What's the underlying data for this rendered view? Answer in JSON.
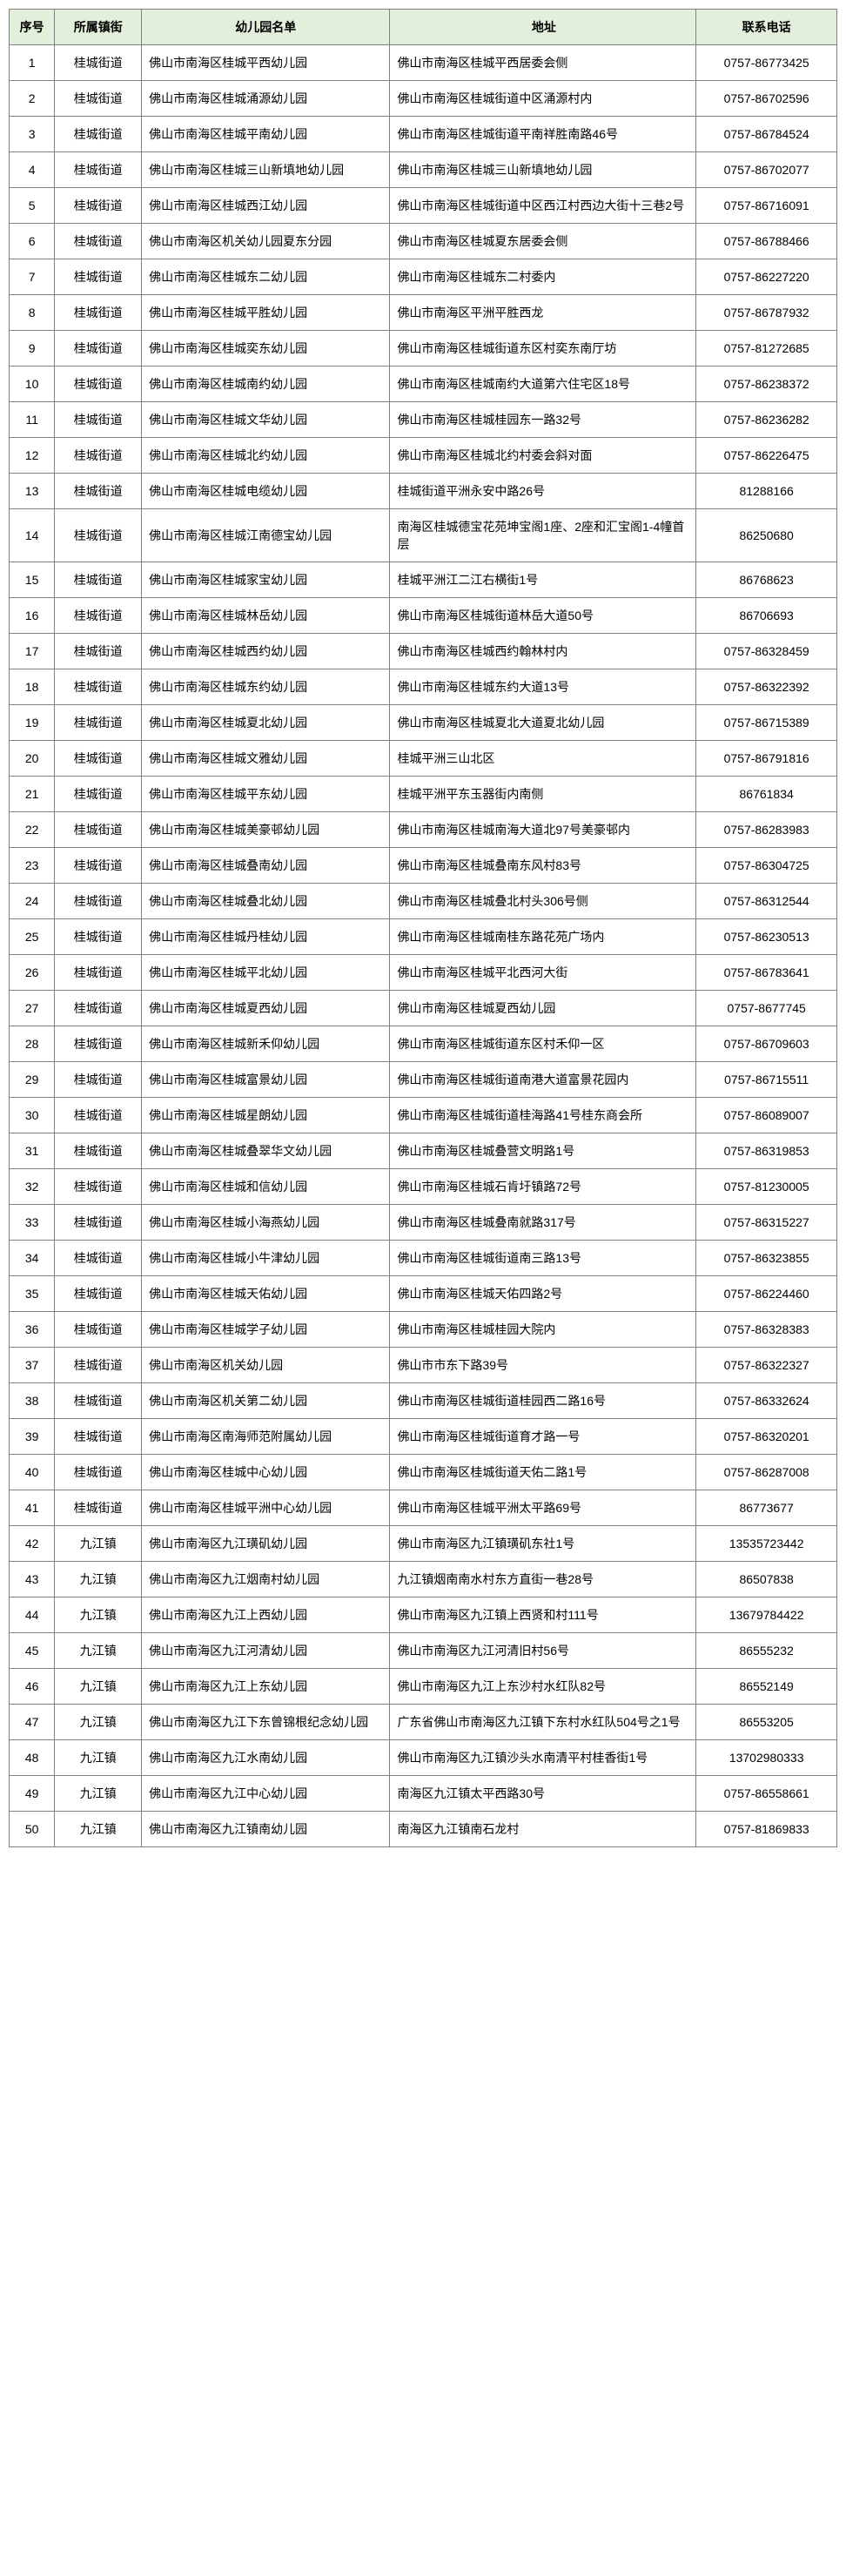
{
  "headers": {
    "seq": "序号",
    "township": "所属镇街",
    "name": "幼儿园名单",
    "address": "地址",
    "phone": "联系电话"
  },
  "rows": [
    {
      "seq": "1",
      "township": "桂城街道",
      "name": "佛山市南海区桂城平西幼儿园",
      "address": "佛山市南海区桂城平西居委会侧",
      "phone": "0757-86773425"
    },
    {
      "seq": "2",
      "township": "桂城街道",
      "name": "佛山市南海区桂城涌源幼儿园",
      "address": "佛山市南海区桂城街道中区涌源村内",
      "phone": "0757-86702596"
    },
    {
      "seq": "3",
      "township": "桂城街道",
      "name": "佛山市南海区桂城平南幼儿园",
      "address": "佛山市南海区桂城街道平南祥胜南路46号",
      "phone": "0757-86784524"
    },
    {
      "seq": "4",
      "township": "桂城街道",
      "name": "佛山市南海区桂城三山新填地幼儿园",
      "address": "佛山市南海区桂城三山新填地幼儿园",
      "phone": "0757-86702077"
    },
    {
      "seq": "5",
      "township": "桂城街道",
      "name": "佛山市南海区桂城西江幼儿园",
      "address": "佛山市南海区桂城街道中区西江村西边大街十三巷2号",
      "phone": "0757-86716091"
    },
    {
      "seq": "6",
      "township": "桂城街道",
      "name": "佛山市南海区机关幼儿园夏东分园",
      "address": "佛山市南海区桂城夏东居委会侧",
      "phone": "0757-86788466"
    },
    {
      "seq": "7",
      "township": "桂城街道",
      "name": "佛山市南海区桂城东二幼儿园",
      "address": "佛山市南海区桂城东二村委内",
      "phone": "0757-86227220"
    },
    {
      "seq": "8",
      "township": "桂城街道",
      "name": "佛山市南海区桂城平胜幼儿园",
      "address": "佛山市南海区平洲平胜西龙",
      "phone": "0757-86787932"
    },
    {
      "seq": "9",
      "township": "桂城街道",
      "name": "佛山市南海区桂城奕东幼儿园",
      "address": "佛山市南海区桂城街道东区村奕东南厅坊",
      "phone": "0757-81272685"
    },
    {
      "seq": "10",
      "township": "桂城街道",
      "name": "佛山市南海区桂城南约幼儿园",
      "address": "佛山市南海区桂城南约大道第六住宅区18号",
      "phone": "0757-86238372"
    },
    {
      "seq": "11",
      "township": "桂城街道",
      "name": "佛山市南海区桂城文华幼儿园",
      "address": "佛山市南海区桂城桂园东一路32号",
      "phone": "0757-86236282"
    },
    {
      "seq": "12",
      "township": "桂城街道",
      "name": "佛山市南海区桂城北约幼儿园",
      "address": "佛山市南海区桂城北约村委会斜对面",
      "phone": "0757-86226475"
    },
    {
      "seq": "13",
      "township": "桂城街道",
      "name": "佛山市南海区桂城电缆幼儿园",
      "address": "桂城街道平洲永安中路26号",
      "phone": "81288166"
    },
    {
      "seq": "14",
      "township": "桂城街道",
      "name": "佛山市南海区桂城江南德宝幼儿园",
      "address": "南海区桂城德宝花苑坤宝阁1座、2座和汇宝阁1-4幢首层",
      "phone": "86250680"
    },
    {
      "seq": "15",
      "township": "桂城街道",
      "name": "佛山市南海区桂城家宝幼儿园",
      "address": "桂城平洲江二江右横街1号",
      "phone": "86768623"
    },
    {
      "seq": "16",
      "township": "桂城街道",
      "name": "佛山市南海区桂城林岳幼儿园",
      "address": "佛山市南海区桂城街道林岳大道50号",
      "phone": "86706693"
    },
    {
      "seq": "17",
      "township": "桂城街道",
      "name": "佛山市南海区桂城西约幼儿园",
      "address": "佛山市南海区桂城西约翰林村内",
      "phone": "0757-86328459"
    },
    {
      "seq": "18",
      "township": "桂城街道",
      "name": "佛山市南海区桂城东约幼儿园",
      "address": "佛山市南海区桂城东约大道13号",
      "phone": "0757-86322392"
    },
    {
      "seq": "19",
      "township": "桂城街道",
      "name": "佛山市南海区桂城夏北幼儿园",
      "address": "佛山市南海区桂城夏北大道夏北幼儿园",
      "phone": "0757-86715389"
    },
    {
      "seq": "20",
      "township": "桂城街道",
      "name": "佛山市南海区桂城文雅幼儿园",
      "address": "桂城平洲三山北区",
      "phone": "0757-86791816"
    },
    {
      "seq": "21",
      "township": "桂城街道",
      "name": "佛山市南海区桂城平东幼儿园",
      "address": "桂城平洲平东玉器街内南侧",
      "phone": "86761834"
    },
    {
      "seq": "22",
      "township": "桂城街道",
      "name": "佛山市南海区桂城美豪邨幼儿园",
      "address": "佛山市南海区桂城南海大道北97号美豪邨内",
      "phone": "0757-86283983"
    },
    {
      "seq": "23",
      "township": "桂城街道",
      "name": "佛山市南海区桂城叠南幼儿园",
      "address": "佛山市南海区桂城叠南东风村83号",
      "phone": "0757-86304725"
    },
    {
      "seq": "24",
      "township": "桂城街道",
      "name": "佛山市南海区桂城叠北幼儿园",
      "address": "佛山市南海区桂城叠北村头306号侧",
      "phone": "0757-86312544"
    },
    {
      "seq": "25",
      "township": "桂城街道",
      "name": "佛山市南海区桂城丹桂幼儿园",
      "address": "佛山市南海区桂城南桂东路花苑广场内",
      "phone": "0757-86230513"
    },
    {
      "seq": "26",
      "township": "桂城街道",
      "name": "佛山市南海区桂城平北幼儿园",
      "address": "佛山市南海区桂城平北西河大街",
      "phone": "0757-86783641"
    },
    {
      "seq": "27",
      "township": "桂城街道",
      "name": "佛山市南海区桂城夏西幼儿园",
      "address": "佛山市南海区桂城夏西幼儿园",
      "phone": "0757-8677745"
    },
    {
      "seq": "28",
      "township": "桂城街道",
      "name": "佛山市南海区桂城新禾仰幼儿园",
      "address": "佛山市南海区桂城街道东区村禾仰一区",
      "phone": "0757-86709603"
    },
    {
      "seq": "29",
      "township": "桂城街道",
      "name": "佛山市南海区桂城富景幼儿园",
      "address": "佛山市南海区桂城街道南港大道富景花园内",
      "phone": "0757-86715511"
    },
    {
      "seq": "30",
      "township": "桂城街道",
      "name": "佛山市南海区桂城星朗幼儿园",
      "address": "佛山市南海区桂城街道桂海路41号桂东商会所",
      "phone": "0757-86089007"
    },
    {
      "seq": "31",
      "township": "桂城街道",
      "name": "佛山市南海区桂城叠翠华文幼儿园",
      "address": "佛山市南海区桂城叠营文明路1号",
      "phone": "0757-86319853"
    },
    {
      "seq": "32",
      "township": "桂城街道",
      "name": "佛山市南海区桂城和信幼儿园",
      "address": "佛山市南海区桂城石肯圩镇路72号",
      "phone": "0757-81230005"
    },
    {
      "seq": "33",
      "township": "桂城街道",
      "name": "佛山市南海区桂城小海燕幼儿园",
      "address": "佛山市南海区桂城叠南就路317号",
      "phone": "0757-86315227"
    },
    {
      "seq": "34",
      "township": "桂城街道",
      "name": "佛山市南海区桂城小牛津幼儿园",
      "address": "佛山市南海区桂城街道南三路13号",
      "phone": "0757-86323855"
    },
    {
      "seq": "35",
      "township": "桂城街道",
      "name": "佛山市南海区桂城天佑幼儿园",
      "address": "佛山市南海区桂城天佑四路2号",
      "phone": "0757-86224460"
    },
    {
      "seq": "36",
      "township": "桂城街道",
      "name": "佛山市南海区桂城学子幼儿园",
      "address": "佛山市南海区桂城桂园大院内",
      "phone": "0757-86328383"
    },
    {
      "seq": "37",
      "township": "桂城街道",
      "name": "佛山市南海区机关幼儿园",
      "address": "佛山市市东下路39号",
      "phone": "0757-86322327"
    },
    {
      "seq": "38",
      "township": "桂城街道",
      "name": "佛山市南海区机关第二幼儿园",
      "address": "佛山市南海区桂城街道桂园西二路16号",
      "phone": "0757-86332624"
    },
    {
      "seq": "39",
      "township": "桂城街道",
      "name": "佛山市南海区南海师范附属幼儿园",
      "address": "佛山市南海区桂城街道育才路一号",
      "phone": "0757-86320201"
    },
    {
      "seq": "40",
      "township": "桂城街道",
      "name": "佛山市南海区桂城中心幼儿园",
      "address": "佛山市南海区桂城街道天佑二路1号",
      "phone": "0757-86287008"
    },
    {
      "seq": "41",
      "township": "桂城街道",
      "name": "佛山市南海区桂城平洲中心幼儿园",
      "address": "佛山市南海区桂城平洲太平路69号",
      "phone": "86773677"
    },
    {
      "seq": "42",
      "township": "九江镇",
      "name": "佛山市南海区九江璜矶幼儿园",
      "address": "佛山市南海区九江镇璜矶东社1号",
      "phone": "13535723442"
    },
    {
      "seq": "43",
      "township": "九江镇",
      "name": "佛山市南海区九江烟南村幼儿园",
      "address": "九江镇烟南南水村东方直街一巷28号",
      "phone": "86507838"
    },
    {
      "seq": "44",
      "township": "九江镇",
      "name": "佛山市南海区九江上西幼儿园",
      "address": "佛山市南海区九江镇上西贤和村111号",
      "phone": "13679784422"
    },
    {
      "seq": "45",
      "township": "九江镇",
      "name": "佛山市南海区九江河清幼儿园",
      "address": "佛山市南海区九江河清旧村56号",
      "phone": "86555232"
    },
    {
      "seq": "46",
      "township": "九江镇",
      "name": "佛山市南海区九江上东幼儿园",
      "address": "佛山市南海区九江上东沙村水红队82号",
      "phone": "86552149"
    },
    {
      "seq": "47",
      "township": "九江镇",
      "name": "佛山市南海区九江下东曾锦根纪念幼儿园",
      "address": "广东省佛山市南海区九江镇下东村水红队504号之1号",
      "phone": "86553205"
    },
    {
      "seq": "48",
      "township": "九江镇",
      "name": "佛山市南海区九江水南幼儿园",
      "address": "佛山市南海区九江镇沙头水南清平村桂香街1号",
      "phone": "13702980333"
    },
    {
      "seq": "49",
      "township": "九江镇",
      "name": "佛山市南海区九江中心幼儿园",
      "address": "南海区九江镇太平西路30号",
      "phone": "0757-86558661"
    },
    {
      "seq": "50",
      "township": "九江镇",
      "name": "佛山市南海区九江镇南幼儿园",
      "address": "南海区九江镇南石龙村",
      "phone": "0757-81869833"
    }
  ]
}
